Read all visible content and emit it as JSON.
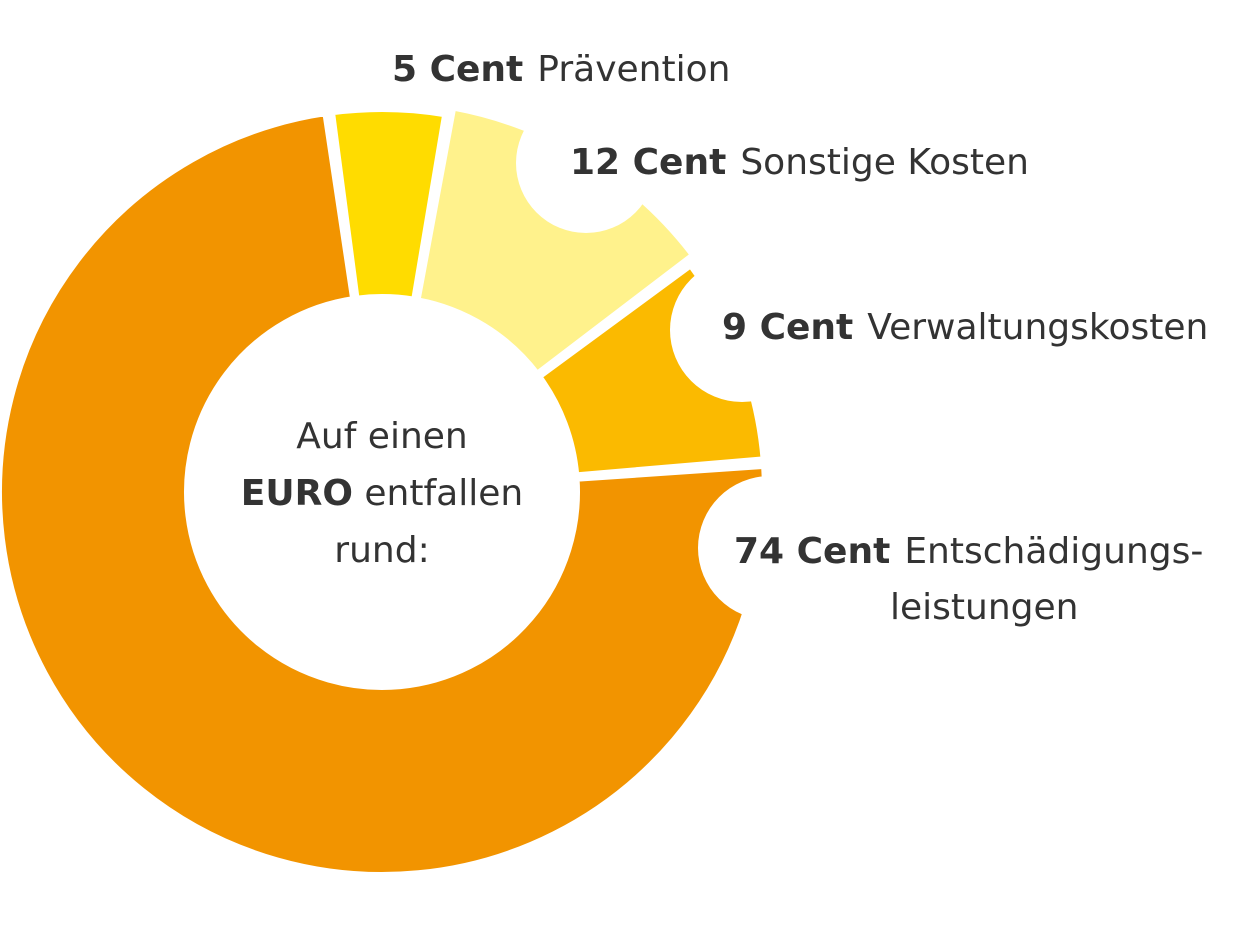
{
  "center_text": {
    "line1": "Auf einen",
    "line2_bold": "EURO",
    "line2_rest": "entfallen",
    "line3": "rund:"
  },
  "chart_data": {
    "type": "pie",
    "variant": "donut",
    "unit": "Cent",
    "slices": [
      {
        "key": "praevention",
        "amount": "5 Cent",
        "label": "Prävention",
        "value": 5,
        "color": "#FFDC00"
      },
      {
        "key": "sonstige",
        "amount": "12 Cent",
        "label": "Sonstige Kosten",
        "value": 12,
        "color": "#FFF28C"
      },
      {
        "key": "verwaltung",
        "amount": "9 Cent",
        "label": "Verwaltungskosten",
        "value": 9,
        "color": "#FBBA00"
      },
      {
        "key": "entschaedigung",
        "amount": "74 Cent",
        "label": "Entschädigungs-",
        "label_line2": "leistungen",
        "value": 74,
        "color": "#F29400"
      }
    ]
  }
}
